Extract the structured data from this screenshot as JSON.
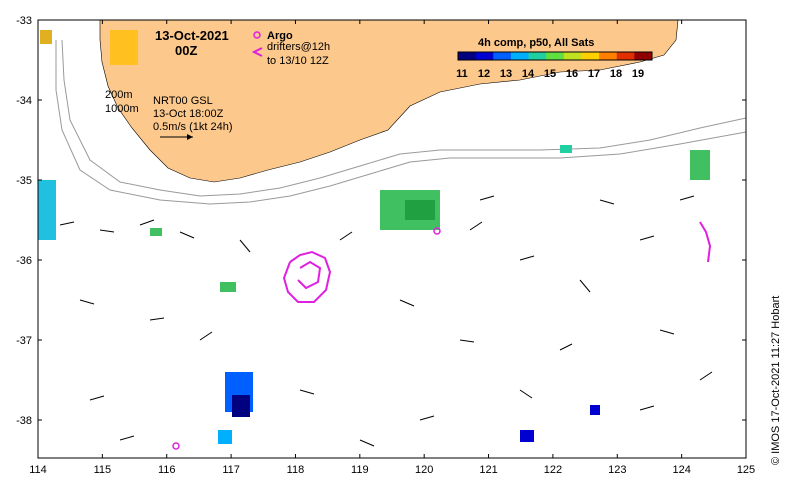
{
  "map": {
    "date_title": "13-Oct-2021",
    "time_title": "00Z",
    "legend": {
      "argo_label": "Argo",
      "drifters_line1": "drifters@12h",
      "drifters_line2": "to 13/10 12Z",
      "argo_color": "#e020e0",
      "drifter_color": "#e020e0"
    },
    "info": {
      "iso200": "200m",
      "iso1000": "1000m",
      "product": "NRT00 GSL",
      "valid": "13-Oct 18:00Z",
      "scale": "0.5m/s (1kt 24h)"
    },
    "colorbar": {
      "title": "4h comp, p50, All Sats",
      "labels": [
        "11",
        "12",
        "13",
        "14",
        "15",
        "16",
        "17",
        "18",
        "19"
      ],
      "colors": [
        "#000080",
        "#0000d0",
        "#0060ff",
        "#00b0ff",
        "#20d0a0",
        "#60e040",
        "#c0e020",
        "#ffd000",
        "#ff8000",
        "#e03000",
        "#900000"
      ]
    },
    "axes": {
      "lon_labels": [
        "114",
        "115",
        "116",
        "117",
        "118",
        "119",
        "120",
        "121",
        "122",
        "123",
        "124",
        "125"
      ],
      "lat_labels": [
        "-33",
        "-34",
        "-35",
        "-36",
        "-37",
        "-38"
      ],
      "lon_range": [
        114,
        125
      ],
      "lat_range": [
        -38.5,
        -33
      ]
    },
    "credit": "© IMOS 17-Oct-2021 11:27 Hobart",
    "land_color": "#fcc88c"
  }
}
